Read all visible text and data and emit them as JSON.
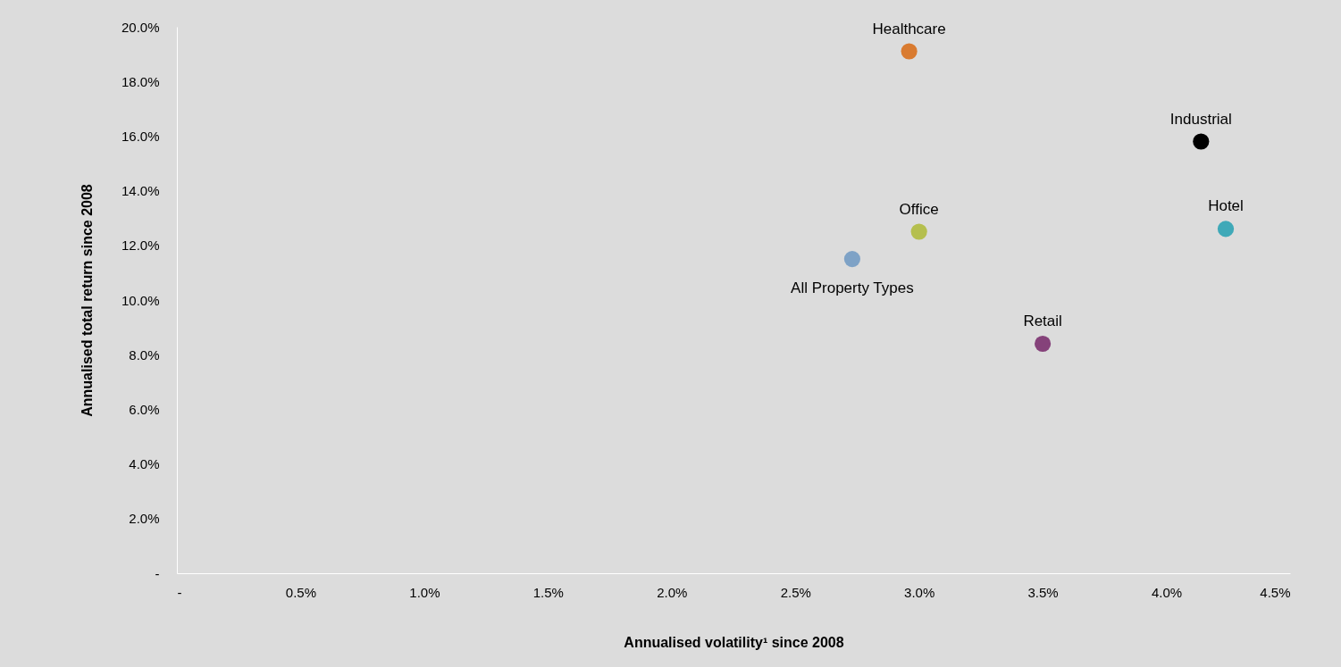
{
  "chart_data": {
    "type": "scatter",
    "xlabel": "Annualised volatility¹ since 2008",
    "ylabel": "Annualised total return since 2008",
    "series": [
      {
        "name": "Healthcare",
        "color": "#d97b30",
        "x": [
          2.96
        ],
        "values": [
          19.1
        ]
      },
      {
        "name": "Industrial",
        "color": "#000000",
        "x": [
          4.14
        ],
        "values": [
          15.8
        ]
      },
      {
        "name": "Office",
        "color": "#b5bf4e",
        "x": [
          3.0
        ],
        "values": [
          12.5
        ]
      },
      {
        "name": "All Property Types",
        "color": "#7ea2c6",
        "x": [
          2.73
        ],
        "values": [
          11.5
        ]
      },
      {
        "name": "Hotel",
        "color": "#3fa9b8",
        "x": [
          4.24
        ],
        "values": [
          12.6
        ]
      },
      {
        "name": "Retail",
        "color": "#85427a",
        "x": [
          3.5
        ],
        "values": [
          8.4
        ]
      }
    ],
    "xlim": [
      0,
      4.5
    ],
    "xticks": [
      {
        "value": 0,
        "label": "-"
      },
      {
        "value": 0.5,
        "label": "0.5%"
      },
      {
        "value": 1,
        "label": "1.0%"
      },
      {
        "value": 1.5,
        "label": "1.5%"
      },
      {
        "value": 2,
        "label": "2.0%"
      },
      {
        "value": 2.5,
        "label": "2.5%"
      },
      {
        "value": 3,
        "label": "3.0%"
      },
      {
        "value": 3.5,
        "label": "3.5%"
      },
      {
        "value": 4,
        "label": "4.0%"
      },
      {
        "value": 4.5,
        "label": "4.5%"
      }
    ],
    "ylim": [
      0,
      20
    ],
    "yticks": [
      {
        "value": 0,
        "label": "-"
      },
      {
        "value": 2,
        "label": "2.0%"
      },
      {
        "value": 4,
        "label": "4.0%"
      },
      {
        "value": 6,
        "label": "6.0%"
      },
      {
        "value": 8,
        "label": "8.0%"
      },
      {
        "value": 10,
        "label": "10.0%"
      },
      {
        "value": 12,
        "label": "12.0%"
      },
      {
        "value": 14,
        "label": "14.0%"
      },
      {
        "value": 16,
        "label": "16.0%"
      },
      {
        "value": 18,
        "label": "18.0%"
      },
      {
        "value": 20,
        "label": "20.0%"
      }
    ],
    "legend": false,
    "marker": "circle"
  }
}
